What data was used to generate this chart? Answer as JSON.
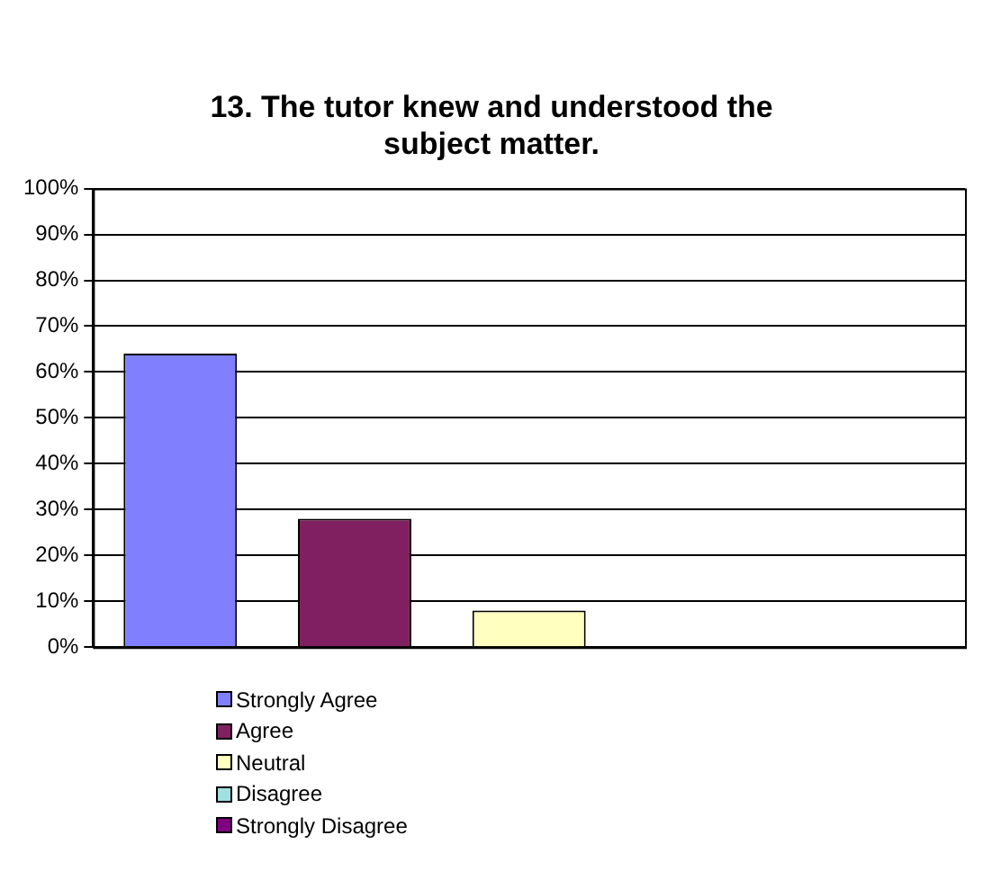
{
  "chart_data": {
    "type": "bar",
    "title": "13. The tutor knew and understood the subject matter.",
    "categories": [
      null,
      null,
      null,
      null,
      null
    ],
    "series": [
      {
        "name": "Strongly Agree",
        "color": "#8080ff",
        "values": [
          64,
          null,
          null,
          null,
          null
        ]
      },
      {
        "name": "Agree",
        "color": "#802060",
        "values": [
          null,
          28,
          null,
          null,
          null
        ]
      },
      {
        "name": "Neutral",
        "color": "#ffffc0",
        "values": [
          null,
          null,
          8,
          null,
          null
        ]
      },
      {
        "name": "Disagree",
        "color": "#a0e0e0",
        "values": [
          null,
          null,
          null,
          0,
          null
        ]
      },
      {
        "name": "Strongly Disagree",
        "color": "#800080",
        "values": [
          null,
          null,
          null,
          null,
          0
        ]
      }
    ],
    "ylim": [
      0,
      100
    ],
    "yticks": [
      {
        "value": 0,
        "label": "0%"
      },
      {
        "value": 10,
        "label": "10%"
      },
      {
        "value": 20,
        "label": "20%"
      },
      {
        "value": 30,
        "label": "30%"
      },
      {
        "value": 40,
        "label": "40%"
      },
      {
        "value": 50,
        "label": "50%"
      },
      {
        "value": 60,
        "label": "60%"
      },
      {
        "value": 70,
        "label": "70%"
      },
      {
        "value": 80,
        "label": "80%"
      },
      {
        "value": 90,
        "label": "90%"
      },
      {
        "value": 100,
        "label": "100%"
      }
    ],
    "grid": "y",
    "legend": "bottom"
  }
}
